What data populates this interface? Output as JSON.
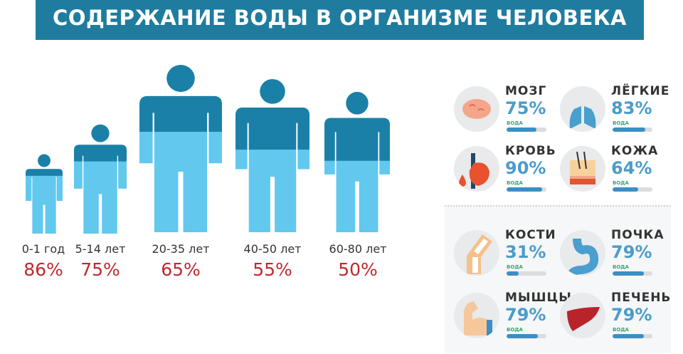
{
  "title": "СОДЕРЖАНИЕ ВОДЫ В ОРГАНИЗМЕ ЧЕЛОВЕКА",
  "colors": {
    "title_bg": "#1f7c9f",
    "figure_dark": "#1b80a8",
    "figure_light": "#62c8ee",
    "percent_red": "#c0282d",
    "organ_blue": "#4b9ccb"
  },
  "ages": [
    {
      "label": "0-1 год",
      "percent": "86%",
      "value": 86
    },
    {
      "label": "5-14 лет",
      "percent": "75%",
      "value": 75
    },
    {
      "label": "20-35 лет",
      "percent": "65%",
      "value": 65
    },
    {
      "label": "40-50 лет",
      "percent": "55%",
      "value": 55
    },
    {
      "label": "60-80 лет",
      "percent": "50%",
      "value": 50
    }
  ],
  "organs": [
    {
      "name": "МОЗГ",
      "percent": "75%",
      "value": 75,
      "water": "ВОДА",
      "icon": "brain-icon"
    },
    {
      "name": "ЛЁГКИЕ",
      "percent": "83%",
      "value": 83,
      "water": "ВОДА",
      "icon": "lungs-icon"
    },
    {
      "name": "КРОВЬ",
      "percent": "90%",
      "value": 90,
      "water": "ВОДА",
      "icon": "heart-icon"
    },
    {
      "name": "КОЖА",
      "percent": "64%",
      "value": 64,
      "water": "ВОДА",
      "icon": "skin-icon"
    },
    {
      "name": "КОСТИ",
      "percent": "31%",
      "value": 31,
      "water": "ВОДА",
      "icon": "bone-icon"
    },
    {
      "name": "ПОЧКА",
      "percent": "79%",
      "value": 79,
      "water": "ВОДА",
      "icon": "kidney-icon"
    },
    {
      "name": "МЫШЦЫ",
      "percent": "79%",
      "value": 79,
      "water": "ВОДА",
      "icon": "muscle-icon"
    },
    {
      "name": "ПЕЧЕНЬ",
      "percent": "79%",
      "value": 79,
      "water": "ВОДА",
      "icon": "liver-icon"
    }
  ]
}
